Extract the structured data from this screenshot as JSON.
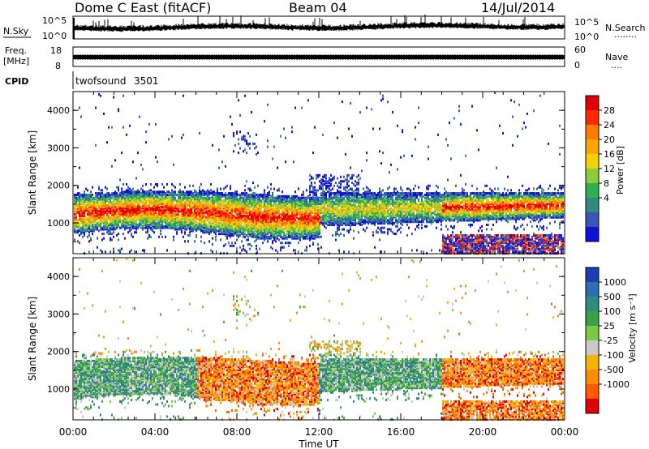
{
  "header": {
    "title": "Dome C East (fitACF)",
    "beam": "Beam 04",
    "date": "14/Jul/2014"
  },
  "noise_panel": {
    "left_label": "N.Sky",
    "right_label": "N.Search",
    "left_ticks": [
      "10^5",
      "10^0"
    ],
    "right_ticks": [
      "10^5",
      "10^0"
    ],
    "legend_dots": "........"
  },
  "freq_panel": {
    "left_label_1": "Freq.",
    "left_label_2": "[MHz]",
    "right_label": "Nave",
    "left_ticks": [
      "18",
      "8"
    ],
    "right_ticks": [
      "60",
      "0"
    ],
    "legend_dots": "...."
  },
  "cpid": {
    "label": "CPID",
    "program": "twofsound",
    "id": "3501"
  },
  "colorbar_power": {
    "label": "Power [dB]",
    "ticks": [
      "28",
      "24",
      "20",
      "16",
      "12",
      "8",
      "4"
    ],
    "colors": [
      "#e00000",
      "#ff2a00",
      "#ff7a00",
      "#ffa500",
      "#f2d200",
      "#8ccc3c",
      "#2fb050",
      "#2e8b7e",
      "#3a55b8",
      "#1010d8"
    ]
  },
  "colorbar_velocity": {
    "label": "Velocity [m s⁻¹]",
    "ticks": [
      "1000",
      "500",
      "100",
      "25",
      "-25",
      "-100",
      "-500",
      "-1000"
    ],
    "colors": [
      "#1a3fb5",
      "#2d6fb0",
      "#2e8b7e",
      "#3aa04a",
      "#7ac843",
      "#c8c8c8",
      "#f5b400",
      "#ff8c00",
      "#ff5a00",
      "#e00000"
    ]
  },
  "chart_data": [
    {
      "type": "heatmap",
      "panel": "power",
      "xlabel": "Time UT",
      "ylabel": "Slant Range [km]",
      "x_ticks": [
        "00:00",
        "04:00",
        "08:00",
        "12:00",
        "16:00",
        "20:00",
        "00:00"
      ],
      "y_ticks": [
        1000,
        2000,
        3000,
        4000
      ],
      "x_range_hours": [
        0,
        24
      ],
      "y_range_km": [
        180,
        4500
      ],
      "colorbar": "Power [dB]"
    },
    {
      "type": "heatmap",
      "panel": "velocity",
      "xlabel": "Time UT",
      "ylabel": "Slant Range [km]",
      "x_ticks": [
        "00:00",
        "04:00",
        "08:00",
        "12:00",
        "16:00",
        "20:00",
        "00:00"
      ],
      "y_ticks": [
        1000,
        2000,
        3000,
        4000
      ],
      "x_range_hours": [
        0,
        24
      ],
      "y_range_km": [
        180,
        4500
      ],
      "colorbar": "Velocity [m s-1]"
    }
  ],
  "xaxis": {
    "title": "Time UT"
  }
}
